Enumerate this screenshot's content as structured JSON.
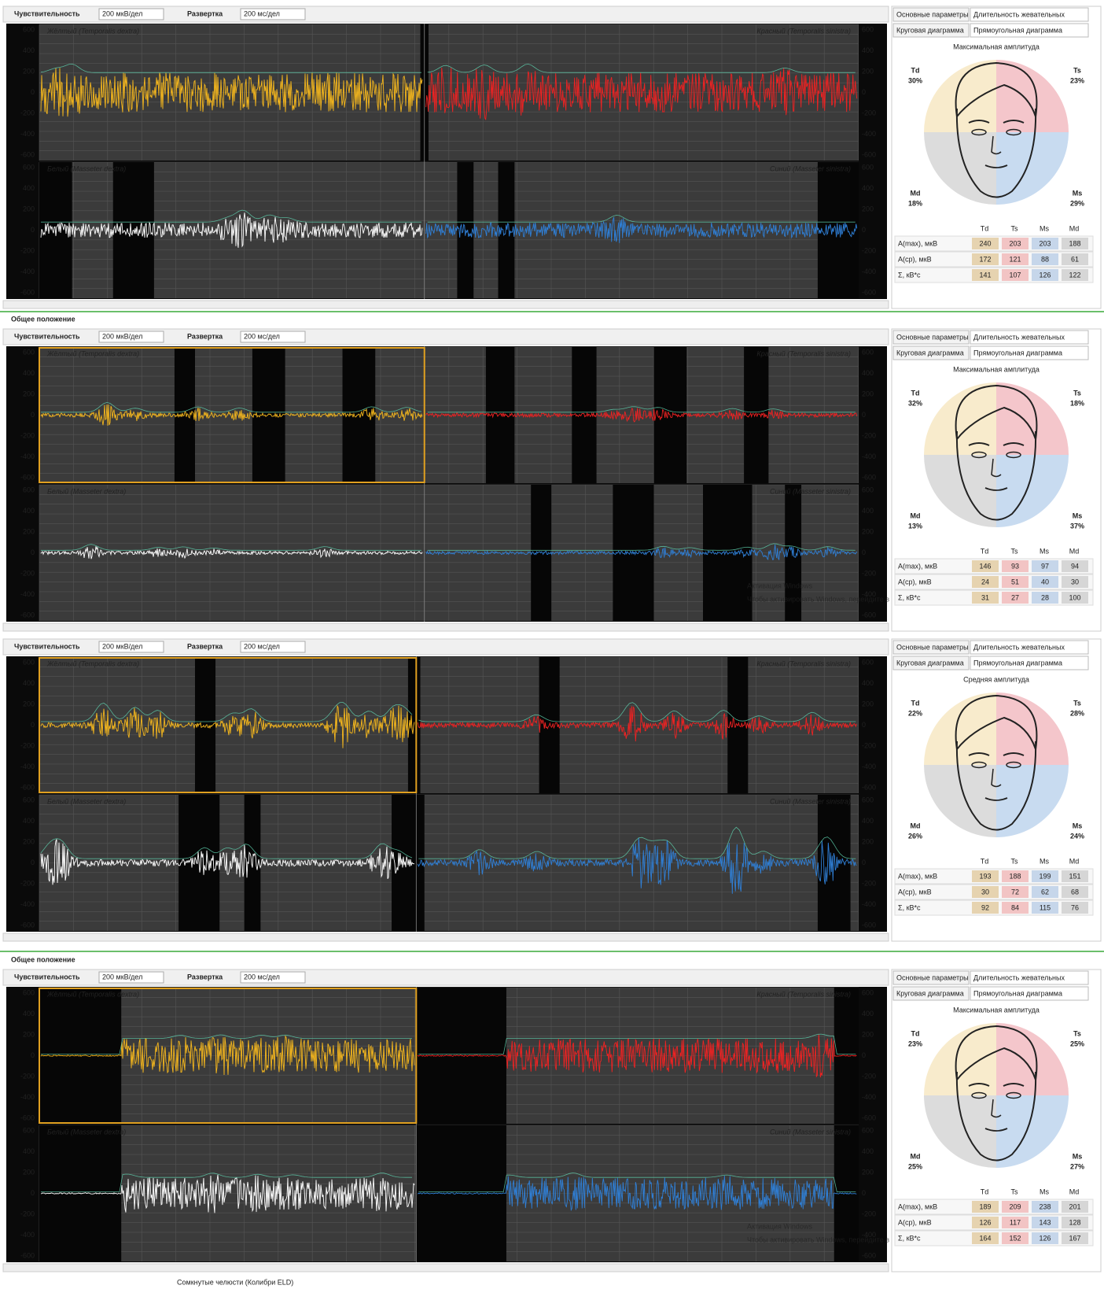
{
  "toolbar": {
    "sensitivity_label": "Чувствительность",
    "sensitivity": "200 мкВ/дел",
    "sweep_label": "Развертка",
    "sweep": "200 мс/дел"
  },
  "section_label": "Общее положение",
  "axis_ticks": [
    600,
    400,
    200,
    0,
    -200,
    -400,
    -600
  ],
  "channels": {
    "top_left": "Жёлтый (Temporalis dextra)",
    "top_right": "Красный (Temporalis sinistra)",
    "bottom_left": "Белый (Masseter dextra)",
    "bottom_right": "Синий (Masseter sinistra)"
  },
  "tabs": [
    "Основные параметры",
    "Длительность жевательных",
    "Круговая диаграмма",
    "Прямоугольная диаграмма"
  ],
  "table_header": [
    "Td",
    "Ts",
    "Ms",
    "Md"
  ],
  "row_labels": [
    "A(max), мкВ",
    "A(ср), мкВ",
    "Σ, кВ*с"
  ],
  "panels": [
    {
      "diagram_title": "Максимальная амплитуда",
      "sectors": [
        {
          "name": "Td",
          "percent": "30%"
        },
        {
          "name": "Ts",
          "percent": "23%"
        },
        {
          "name": "Md",
          "percent": "18%"
        },
        {
          "name": "Ms",
          "percent": "29%"
        }
      ],
      "rows": [
        [
          240,
          203,
          203,
          188
        ],
        [
          172,
          121,
          88,
          61
        ],
        [
          141,
          107,
          126,
          122
        ]
      ]
    },
    {
      "diagram_title": "Максимальная амплитуда",
      "sectors": [
        {
          "name": "Td",
          "percent": "32%"
        },
        {
          "name": "Ts",
          "percent": "18%"
        },
        {
          "name": "Md",
          "percent": "13%"
        },
        {
          "name": "Ms",
          "percent": "37%"
        }
      ],
      "rows": [
        [
          146,
          93,
          97,
          94
        ],
        [
          24,
          51,
          40,
          30
        ],
        [
          31,
          27,
          28,
          100
        ]
      ]
    },
    {
      "diagram_title": "Средняя амплитуда",
      "sectors": [
        {
          "name": "Td",
          "percent": "22%"
        },
        {
          "name": "Ts",
          "percent": "28%"
        },
        {
          "name": "Md",
          "percent": "26%"
        },
        {
          "name": "Ms",
          "percent": "24%"
        }
      ],
      "rows": [
        [
          193,
          188,
          199,
          151
        ],
        [
          30,
          72,
          62,
          68
        ],
        [
          92,
          84,
          115,
          76
        ]
      ]
    },
    {
      "diagram_title": "Максимальная амплитуда",
      "sectors": [
        {
          "name": "Td",
          "percent": "23%"
        },
        {
          "name": "Ts",
          "percent": "25%"
        },
        {
          "name": "Md",
          "percent": "25%"
        },
        {
          "name": "Ms",
          "percent": "27%"
        }
      ],
      "rows": [
        [
          189,
          209,
          238,
          201
        ],
        [
          126,
          117,
          143,
          128
        ],
        [
          164,
          152,
          126,
          167
        ]
      ]
    }
  ],
  "watermark": {
    "title": "Активация Windows",
    "subtitle": "Чтобы активировать Windows, перейдите в раздел «Параметры»."
  },
  "footer": "Сомкнутые челюсти (Колибри ELD)"
}
